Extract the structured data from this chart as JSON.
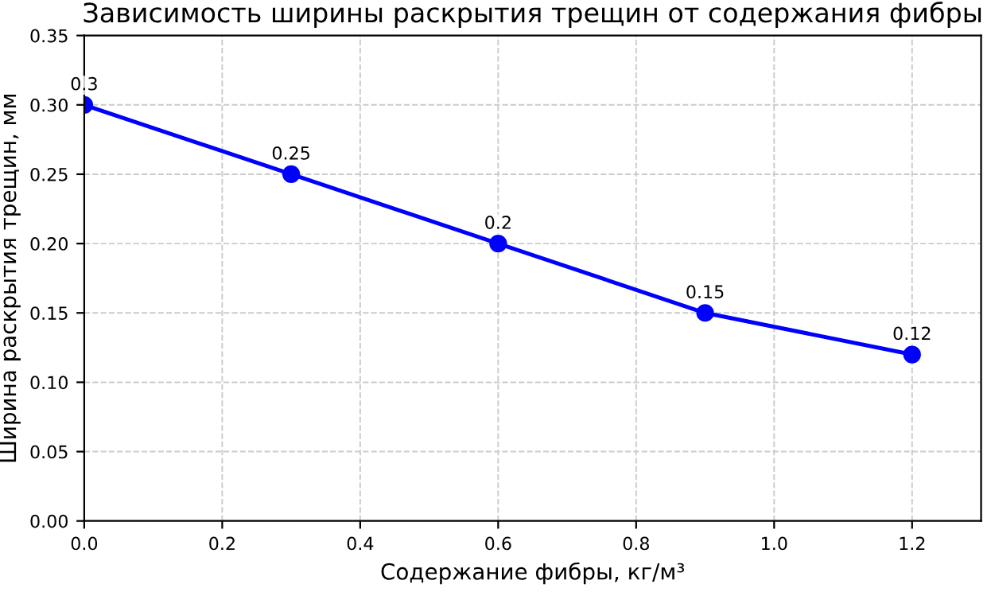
{
  "chart_data": {
    "type": "line",
    "title": "Зависимость ширины раскрытия трещин от содержания фибры",
    "xlabel": "Содержание фибры, кг/м³",
    "ylabel": "Ширина раскрытия трещин, мм",
    "x": [
      0,
      0.3,
      0.6,
      0.9,
      1.2
    ],
    "series": [
      {
        "color": "#0000ff",
        "values": [
          0.3,
          0.25,
          0.2,
          0.15,
          0.12
        ]
      }
    ],
    "value_labels": [
      "0.3",
      "0.25",
      "0.2",
      "0.15",
      "0.12"
    ],
    "xlim": [
      0,
      1.3
    ],
    "xticks": [
      {
        "value": 0,
        "label": "0.0"
      },
      {
        "value": 0.2,
        "label": "0.2"
      },
      {
        "value": 0.4,
        "label": "0.4"
      },
      {
        "value": 0.6,
        "label": "0.6"
      },
      {
        "value": 0.8,
        "label": "0.8"
      },
      {
        "value": 1.0,
        "label": "1.0"
      },
      {
        "value": 1.2,
        "label": "1.2"
      }
    ],
    "ylim": [
      0,
      0.35
    ],
    "yticks": [
      {
        "value": 0,
        "label": "0.00"
      },
      {
        "value": 0.05,
        "label": "0.05"
      },
      {
        "value": 0.1,
        "label": "0.10"
      },
      {
        "value": 0.15,
        "label": "0.15"
      },
      {
        "value": 0.2,
        "label": "0.20"
      },
      {
        "value": 0.25,
        "label": "0.25"
      },
      {
        "value": 0.3,
        "label": "0.30"
      },
      {
        "value": 0.35,
        "label": "0.35"
      }
    ],
    "grid": true,
    "marker": "circle",
    "line_style": "solid",
    "legend": false
  }
}
